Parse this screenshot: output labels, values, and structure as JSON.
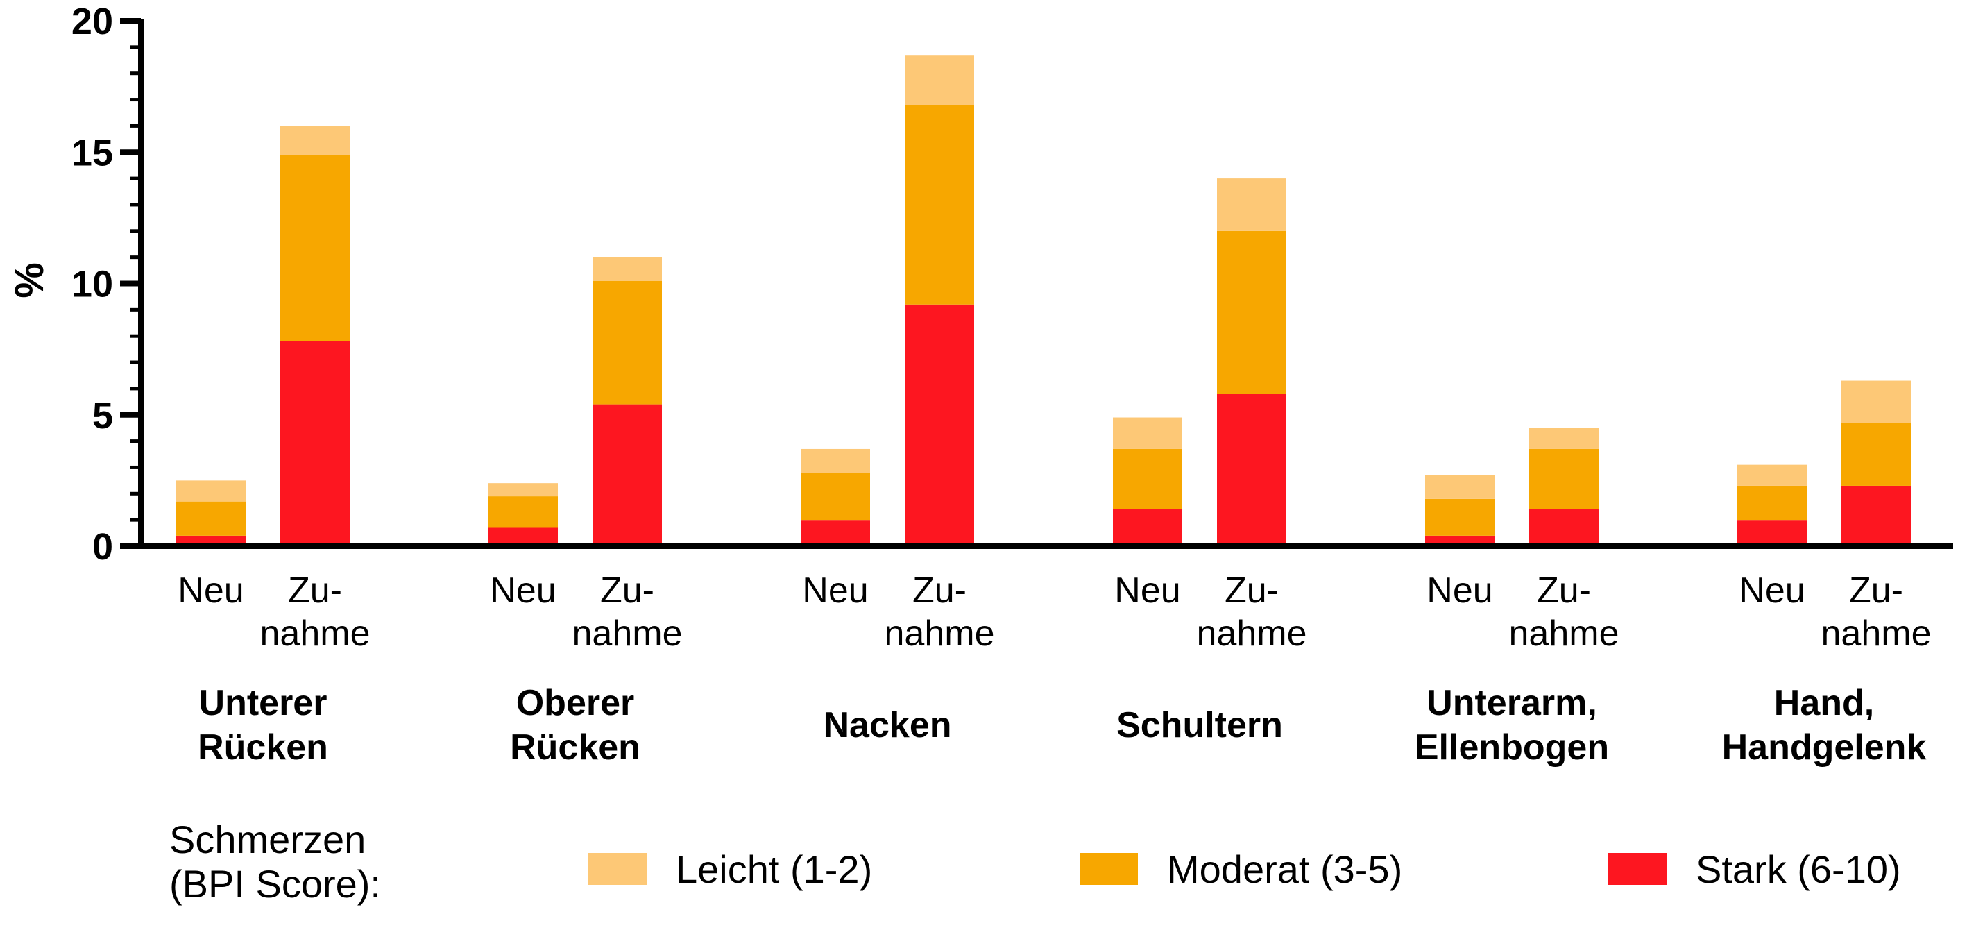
{
  "chart_data": {
    "type": "bar",
    "stacked": true,
    "ylabel": "%",
    "ylim": [
      0,
      20
    ],
    "yticks": [
      0,
      5,
      10,
      15,
      20
    ],
    "grid": false,
    "legend_position": "bottom",
    "groups": [
      {
        "label": [
          "Unterer",
          "Rücken"
        ]
      },
      {
        "label": [
          "Oberer",
          "Rücken"
        ]
      },
      {
        "label": [
          "Nacken"
        ]
      },
      {
        "label": [
          "Schultern"
        ]
      },
      {
        "label": [
          "Unterarm,",
          "Ellenbogen"
        ]
      },
      {
        "label": [
          "Hand,",
          "Handgelenk"
        ]
      }
    ],
    "bar_labels": [
      [
        "Neu"
      ],
      [
        "Zu-",
        "nahme"
      ]
    ],
    "series": [
      {
        "name": "Stark (6-10)",
        "color": "#fd1620",
        "values": [
          [
            0.4,
            7.8
          ],
          [
            0.7,
            5.4
          ],
          [
            1.0,
            9.2
          ],
          [
            1.4,
            5.8
          ],
          [
            0.4,
            1.4
          ],
          [
            1.0,
            2.3
          ]
        ]
      },
      {
        "name": "Moderat (3-5)",
        "color": "#f7a700",
        "values": [
          [
            1.3,
            7.1
          ],
          [
            1.2,
            4.7
          ],
          [
            1.8,
            7.6
          ],
          [
            2.3,
            6.2
          ],
          [
            1.4,
            2.3
          ],
          [
            1.3,
            2.4
          ]
        ]
      },
      {
        "name": "Leicht (1-2)",
        "color": "#fdc876",
        "values": [
          [
            0.8,
            1.1
          ],
          [
            0.5,
            0.9
          ],
          [
            0.9,
            1.9
          ],
          [
            1.2,
            2.0
          ],
          [
            0.9,
            0.8
          ],
          [
            0.8,
            1.6
          ]
        ]
      }
    ]
  },
  "legend": {
    "title": [
      "Schmerzen",
      "(BPI Score):"
    ],
    "items": [
      {
        "label": "Leicht (1-2)",
        "color": "#fdc876"
      },
      {
        "label": "Moderat (3-5)",
        "color": "#f7a700"
      },
      {
        "label": "Stark (6-10)",
        "color": "#fd1620"
      }
    ]
  }
}
